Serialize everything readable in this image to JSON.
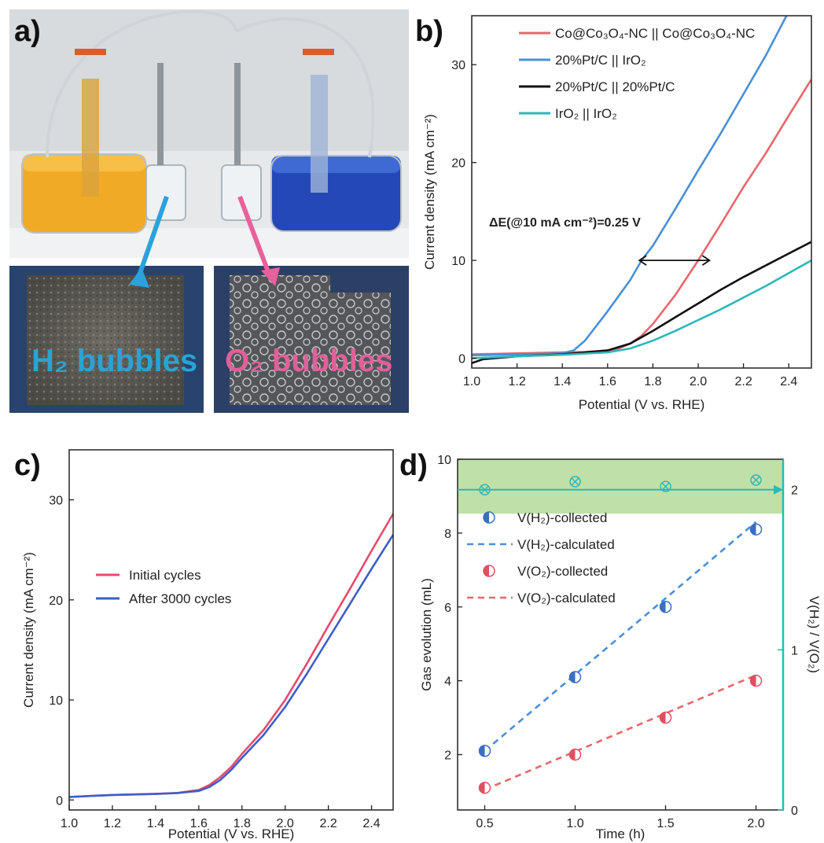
{
  "panels": {
    "a": "a)",
    "b": "b)",
    "c": "c)",
    "d": "d)"
  },
  "photo": {
    "h2_label": "H₂ bubbles",
    "o2_label": "O₂ bubbles",
    "h2_color": "#29a3d6",
    "o2_color": "#e0609a"
  },
  "chart_data": [
    {
      "id": "b",
      "type": "line",
      "xlabel": "Potential (V vs. RHE)",
      "ylabel": "Current density (mA cm⁻²)",
      "xlim": [
        1.0,
        2.5
      ],
      "ylim": [
        -1,
        35
      ],
      "xticks": [
        "1.0",
        "1.2",
        "1.4",
        "1.6",
        "1.8",
        "2.0",
        "2.2",
        "2.4"
      ],
      "yticks": [
        "0",
        "10",
        "20",
        "30"
      ],
      "legend_position": "top-right",
      "annotation": "ΔE(@10 mA cm⁻²)=0.25 V",
      "series": [
        {
          "name": "Co@Co₃O₄-NC || Co@Co₃O₄-NC",
          "color": "#e8676b",
          "x": [
            1.0,
            1.2,
            1.4,
            1.5,
            1.6,
            1.65,
            1.7,
            1.75,
            1.8,
            1.9,
            2.0,
            2.1,
            2.2,
            2.3,
            2.4,
            2.5
          ],
          "y": [
            0.4,
            0.5,
            0.6,
            0.65,
            0.8,
            1.0,
            1.5,
            2.3,
            3.5,
            6.5,
            10.0,
            13.7,
            17.5,
            21.0,
            24.8,
            28.5
          ]
        },
        {
          "name": "20%Pt/C || IrO₂",
          "color": "#4a8fd9",
          "x": [
            1.0,
            1.2,
            1.4,
            1.45,
            1.5,
            1.55,
            1.6,
            1.7,
            1.75,
            1.8,
            1.9,
            2.0,
            2.1,
            2.2,
            2.3,
            2.39
          ],
          "y": [
            0.3,
            0.4,
            0.5,
            0.8,
            1.8,
            3.3,
            4.8,
            8.0,
            10.0,
            11.5,
            15.3,
            19.2,
            23.0,
            27.0,
            31.0,
            35.0
          ]
        },
        {
          "name": "20%Pt/C || 20%Pt/C",
          "color": "#111111",
          "x": [
            1.0,
            1.05,
            1.1,
            1.2,
            1.4,
            1.6,
            1.7,
            1.8,
            1.9,
            2.0,
            2.1,
            2.2,
            2.3,
            2.4,
            2.5
          ],
          "y": [
            -0.5,
            -0.1,
            0.0,
            0.2,
            0.4,
            0.8,
            1.5,
            2.8,
            4.2,
            5.6,
            7.0,
            8.3,
            9.5,
            10.7,
            11.9
          ]
        },
        {
          "name": "IrO₂ || IrO₂",
          "color": "#2bb8b8",
          "x": [
            1.0,
            1.1,
            1.2,
            1.4,
            1.6,
            1.7,
            1.8,
            1.9,
            2.0,
            2.1,
            2.2,
            2.3,
            2.4,
            2.5
          ],
          "y": [
            0.0,
            0.1,
            0.2,
            0.35,
            0.6,
            1.0,
            1.8,
            2.8,
            3.9,
            5.0,
            6.2,
            7.4,
            8.7,
            10.0
          ]
        }
      ]
    },
    {
      "id": "c",
      "type": "line",
      "xlabel": "Potential (V vs. RHE)",
      "ylabel": "Current density (mA cm⁻²)",
      "xlim": [
        1.0,
        2.5
      ],
      "ylim": [
        -1,
        35
      ],
      "xticks": [
        "1.0",
        "1.2",
        "1.4",
        "1.6",
        "1.8",
        "2.0",
        "2.2",
        "2.4"
      ],
      "yticks": [
        "0",
        "10",
        "20",
        "30"
      ],
      "legend_position": "center-left",
      "series": [
        {
          "name": "Initial cycles",
          "color": "#e84a6e",
          "x": [
            1.0,
            1.2,
            1.4,
            1.5,
            1.6,
            1.65,
            1.7,
            1.75,
            1.8,
            1.9,
            2.0,
            2.1,
            2.2,
            2.3,
            2.4,
            2.5
          ],
          "y": [
            0.3,
            0.5,
            0.6,
            0.7,
            1.0,
            1.5,
            2.3,
            3.3,
            4.6,
            7.0,
            10.0,
            13.6,
            17.4,
            21.1,
            24.9,
            28.6
          ]
        },
        {
          "name": "After 3000 cycles",
          "color": "#3d5fc4",
          "x": [
            1.0,
            1.2,
            1.4,
            1.5,
            1.6,
            1.65,
            1.7,
            1.75,
            1.8,
            1.9,
            2.0,
            2.1,
            2.2,
            2.3,
            2.4,
            2.5
          ],
          "y": [
            0.3,
            0.5,
            0.6,
            0.7,
            0.9,
            1.3,
            2.0,
            3.0,
            4.2,
            6.5,
            9.3,
            12.6,
            16.1,
            19.6,
            23.1,
            26.5
          ]
        }
      ]
    },
    {
      "id": "d",
      "type": "scatter",
      "xlabel": "Time (h)",
      "ylabel": "Gas evolution (mL)",
      "y2label": "V(H₂) / V(O₂)",
      "xlim": [
        0.35,
        2.15
      ],
      "ylim": [
        0.5,
        10
      ],
      "y2lim": [
        0,
        2.19
      ],
      "xticks": [
        "0.5",
        "1.0",
        "1.5",
        "2.0"
      ],
      "yticks": [
        "2",
        "4",
        "6",
        "8",
        "10"
      ],
      "y2ticks": [
        "0",
        "1",
        "2"
      ],
      "legend_position": "top-left",
      "series": [
        {
          "name": "V(H₂)-collected",
          "color": "#3a6fc0",
          "x": [
            0.5,
            1.0,
            1.5,
            2.0
          ],
          "y": [
            2.1,
            4.1,
            6.0,
            8.1
          ]
        },
        {
          "name": "V(H₂)-calculated",
          "color": "#4a8fd9",
          "x": [
            0.5,
            2.0
          ],
          "y": [
            2.1,
            8.3
          ],
          "style": "dashed"
        },
        {
          "name": "V(O₂)-collected",
          "color": "#e05062",
          "x": [
            0.5,
            1.0,
            1.5,
            2.0
          ],
          "y": [
            1.1,
            2.0,
            3.0,
            4.0
          ]
        },
        {
          "name": "V(O₂)-calculated",
          "color": "#e8676b",
          "x": [
            0.5,
            2.0
          ],
          "y": [
            1.05,
            4.15
          ],
          "style": "dashed"
        },
        {
          "name": "ratio",
          "color": "#2bb8b8",
          "axis": "right",
          "x": [
            0.5,
            1.0,
            1.5,
            2.0
          ],
          "y": [
            2.0,
            2.05,
            2.02,
            2.06
          ],
          "line_y": 2.0
        }
      ]
    }
  ]
}
